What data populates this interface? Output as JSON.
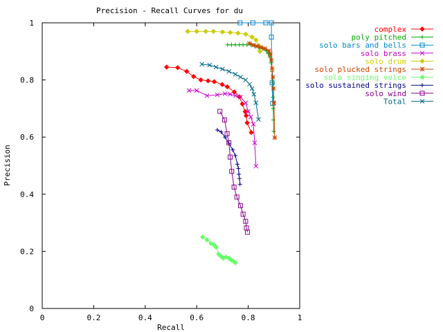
{
  "chart_data": {
    "type": "line",
    "title": "Precision - Recall Curves for du",
    "xlabel": "Recall",
    "ylabel": "Precision",
    "xlim": [
      0,
      1
    ],
    "ylim": [
      0,
      1
    ],
    "xticks": [
      "0",
      "0.2",
      "0.4",
      "0.6",
      "0.8",
      "1"
    ],
    "yticks": [
      "0",
      "0.2",
      "0.4",
      "0.6",
      "0.8",
      "1"
    ],
    "grid": false,
    "legend_position": "right",
    "series": [
      {
        "name": "complex",
        "color": "#ff0000",
        "marker": "diamond",
        "x": [
          0.483,
          0.526,
          0.561,
          0.588,
          0.616,
          0.644,
          0.668,
          0.699,
          0.719,
          0.746,
          0.766,
          0.777,
          0.788,
          0.792,
          0.796,
          0.812
        ],
        "y": [
          0.845,
          0.843,
          0.83,
          0.812,
          0.8,
          0.797,
          0.794,
          0.784,
          0.776,
          0.758,
          0.741,
          0.716,
          0.689,
          0.675,
          0.65,
          0.616
        ]
      },
      {
        "name": "poly pitched",
        "color": "#00aa00",
        "marker": "plus",
        "x": [
          0.72,
          0.735,
          0.75,
          0.765,
          0.78,
          0.795,
          0.81,
          0.825,
          0.84,
          0.855,
          0.87,
          0.878,
          0.884,
          0.889,
          0.893,
          0.895,
          0.896,
          0.897,
          0.898,
          0.899
        ],
        "y": [
          0.923,
          0.923,
          0.923,
          0.923,
          0.923,
          0.923,
          0.923,
          0.919,
          0.915,
          0.91,
          0.902,
          0.892,
          0.88,
          0.86,
          0.83,
          0.79,
          0.74,
          0.7,
          0.66,
          0.62
        ]
      },
      {
        "name": "solo bars and bells",
        "color": "#0088cc",
        "marker": "square",
        "x": [
          0.768,
          0.818,
          0.868,
          0.89,
          0.89,
          0.893,
          0.895
        ],
        "y": [
          1.0,
          1.0,
          1.0,
          1.0,
          0.95,
          0.79,
          0.718
        ]
      },
      {
        "name": "solo brass",
        "color": "#cc00cc",
        "marker": "cross",
        "x": [
          0.57,
          0.6,
          0.64,
          0.68,
          0.71,
          0.73,
          0.75,
          0.77,
          0.79,
          0.8,
          0.81,
          0.82,
          0.825,
          0.83
        ],
        "y": [
          0.763,
          0.763,
          0.745,
          0.748,
          0.752,
          0.75,
          0.745,
          0.74,
          0.72,
          0.69,
          0.67,
          0.645,
          0.58,
          0.498
        ]
      },
      {
        "name": "solo drum",
        "color": "#cccc00",
        "marker": "diamond",
        "x": [
          0.565,
          0.6,
          0.635,
          0.665,
          0.7,
          0.73,
          0.76,
          0.79,
          0.815,
          0.83,
          0.84,
          0.845
        ],
        "y": [
          0.97,
          0.97,
          0.97,
          0.97,
          0.968,
          0.966,
          0.964,
          0.96,
          0.95,
          0.94,
          0.92,
          0.9
        ]
      },
      {
        "name": "solo plucked strings",
        "color": "#cc4400",
        "marker": "star",
        "x": [
          0.805,
          0.82,
          0.835,
          0.85,
          0.865,
          0.88,
          0.886,
          0.89,
          0.893,
          0.896,
          0.898,
          0.9,
          0.903
        ],
        "y": [
          0.928,
          0.922,
          0.918,
          0.914,
          0.91,
          0.902,
          0.89,
          0.87,
          0.84,
          0.81,
          0.77,
          0.72,
          0.598
        ]
      },
      {
        "name": "solo singing voice",
        "color": "#66ff66",
        "marker": "diamond",
        "x": [
          0.623,
          0.64,
          0.655,
          0.668,
          0.675,
          0.685,
          0.695,
          0.703,
          0.713,
          0.725,
          0.733,
          0.742,
          0.75
        ],
        "y": [
          0.25,
          0.24,
          0.228,
          0.222,
          0.215,
          0.19,
          0.182,
          0.176,
          0.18,
          0.176,
          0.17,
          0.166,
          0.16
        ]
      },
      {
        "name": "solo sustained strings",
        "color": "#000088",
        "marker": "plus",
        "x": [
          0.68,
          0.695,
          0.71,
          0.725,
          0.74,
          0.75,
          0.758,
          0.762,
          0.764,
          0.766,
          0.768
        ],
        "y": [
          0.625,
          0.618,
          0.6,
          0.578,
          0.555,
          0.535,
          0.505,
          0.49,
          0.47,
          0.455,
          0.435
        ]
      },
      {
        "name": "solo wind",
        "color": "#880088",
        "marker": "square",
        "x": [
          0.69,
          0.708,
          0.718,
          0.725,
          0.73,
          0.736,
          0.745,
          0.756,
          0.77,
          0.78,
          0.79,
          0.793,
          0.797
        ],
        "y": [
          0.69,
          0.66,
          0.612,
          0.58,
          0.53,
          0.48,
          0.425,
          0.39,
          0.36,
          0.33,
          0.305,
          0.282,
          0.267
        ]
      },
      {
        "name": "Total",
        "color": "#006688",
        "marker": "cross",
        "x": [
          0.62,
          0.65,
          0.675,
          0.7,
          0.725,
          0.75,
          0.77,
          0.79,
          0.805,
          0.815,
          0.822,
          0.83,
          0.84
        ],
        "y": [
          0.855,
          0.852,
          0.845,
          0.838,
          0.83,
          0.82,
          0.81,
          0.8,
          0.785,
          0.77,
          0.75,
          0.72,
          0.662
        ]
      }
    ]
  }
}
